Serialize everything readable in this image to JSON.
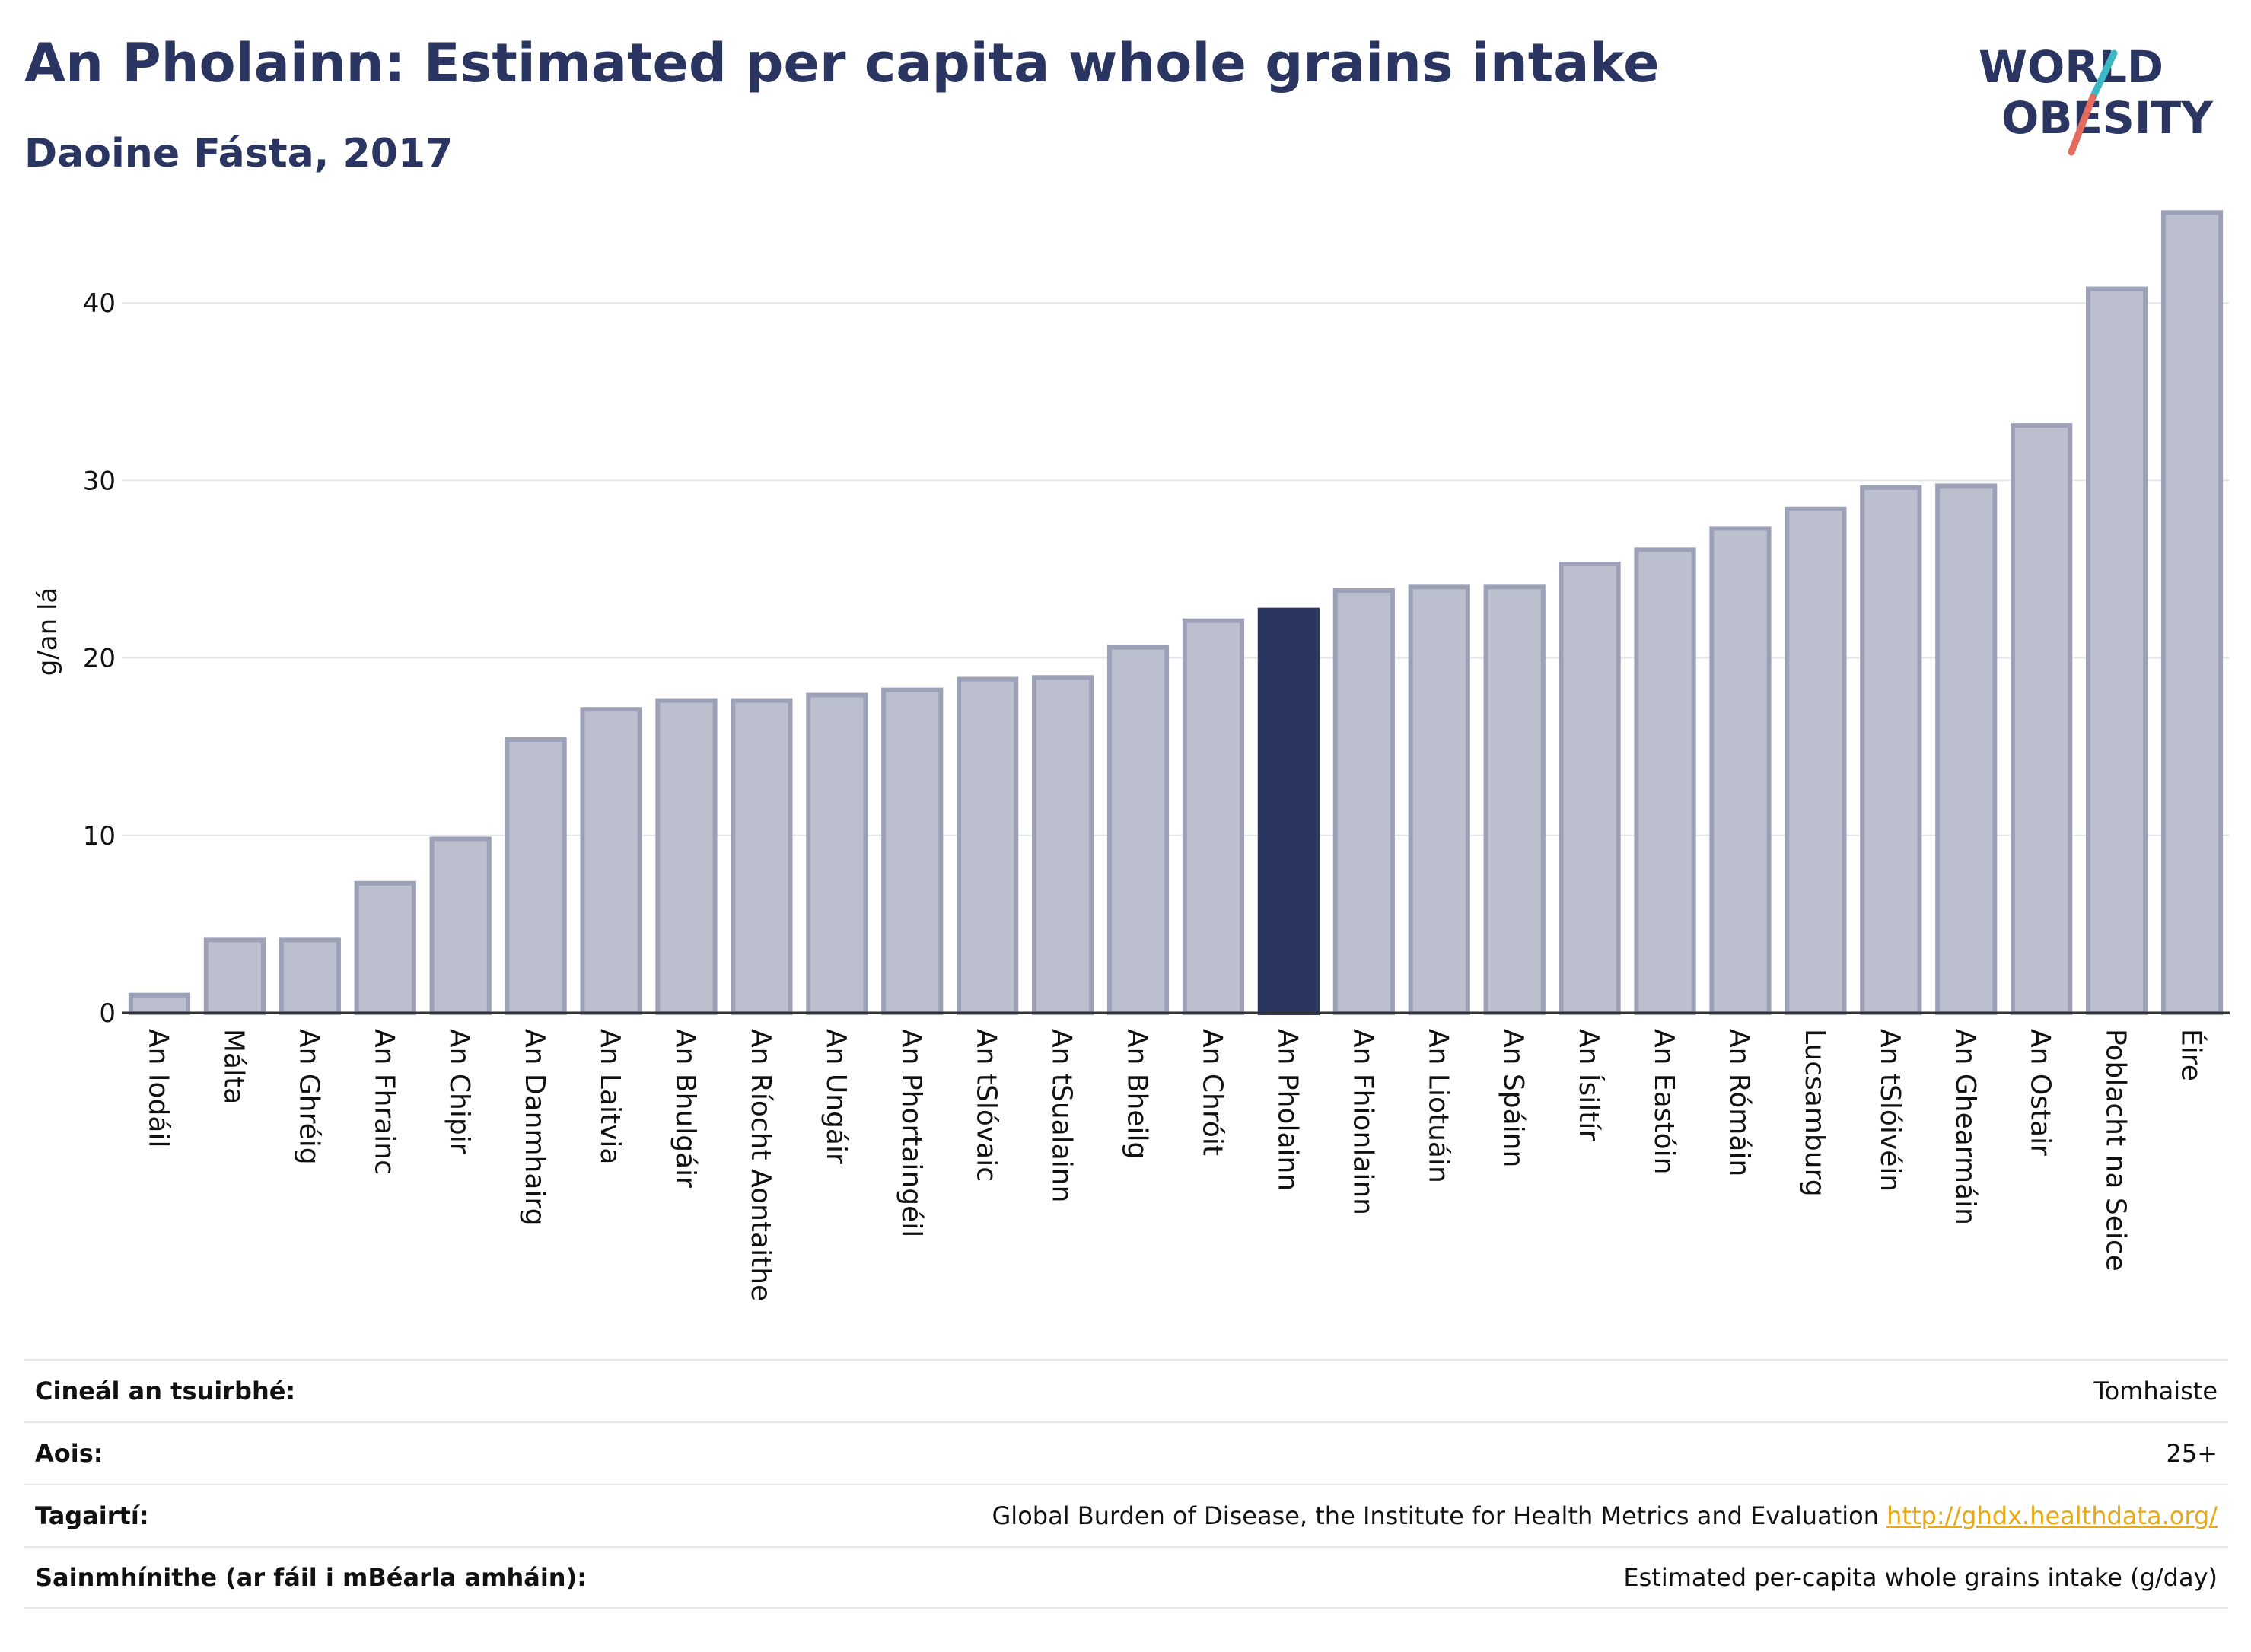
{
  "header": {
    "title": "An Pholainn: Estimated per capita whole grains intake",
    "subtitle": "Daoine Fásta, 2017"
  },
  "logo": {
    "line1": "WORLD",
    "line2": "OBESITY"
  },
  "chart_data": {
    "type": "bar",
    "ylabel": "g/an lá",
    "ylim": [
      0,
      47
    ],
    "yticks": [
      0,
      10,
      20,
      30,
      40
    ],
    "grid": true,
    "highlight": "An Pholainn",
    "colors": {
      "bar": "#bcc0ce",
      "bar_border": "#9ca1b8",
      "highlight": "#2b3561",
      "grid": "#e6e7ec",
      "axis": "#333333"
    },
    "categories": [
      "An Iodáil",
      "Málta",
      "An Ghréig",
      "An Fhrainc",
      "An Chipir",
      "An Danmhairg",
      "An Laitvia",
      "An Bhulgáir",
      "An Ríocht Aontaithe",
      "An Ungáir",
      "An Phortaingéil",
      "An tSlóvaic",
      "An tSualainn",
      "An Bheilg",
      "An Chróit",
      "An Pholainn",
      "An Fhionlainn",
      "An Liotuáin",
      "An Spáinn",
      "An Ísiltír",
      "An Eastóin",
      "An Rómáin",
      "Lucsamburg",
      "An tSlóivéin",
      "An Ghearmáin",
      "An Ostair",
      "Poblacht na Seice",
      "Éire"
    ],
    "values": [
      1.0,
      4.1,
      4.1,
      7.3,
      9.8,
      15.4,
      17.1,
      17.6,
      17.6,
      17.9,
      18.2,
      18.8,
      18.9,
      20.6,
      22.1,
      22.7,
      23.8,
      24.0,
      24.0,
      25.3,
      26.1,
      27.3,
      28.4,
      29.6,
      29.7,
      33.1,
      40.8,
      45.1
    ]
  },
  "footer": {
    "survey_type": {
      "label": "Cineál an tsuirbhé:",
      "value": "Tomhaiste"
    },
    "age": {
      "label": "Aois:",
      "value": "25+"
    },
    "references": {
      "label": "Tagairtí:",
      "value": "Global Burden of Disease, the Institute for Health Metrics and Evaluation",
      "link": "http://ghdx.healthdata.org/"
    },
    "definitions": {
      "label": "Sainmhínithe (ar fáil i mBéarla amháin):",
      "value": "Estimated per-capita whole grains intake (g/day)"
    }
  }
}
